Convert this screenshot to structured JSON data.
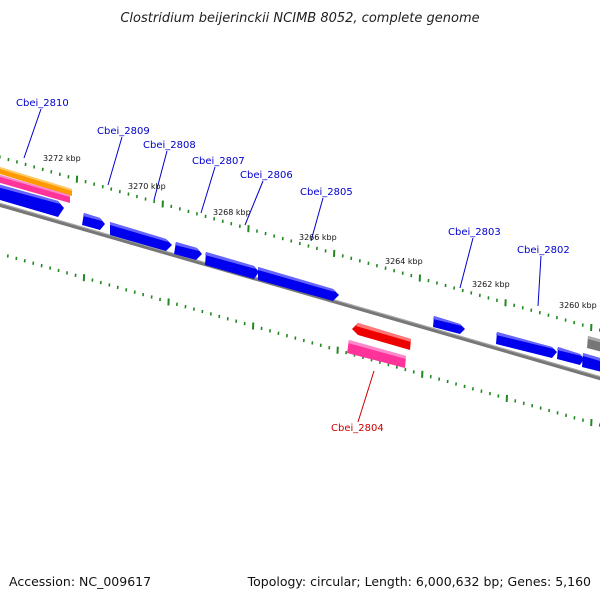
{
  "title": "Clostridium beijerinckii NCIMB 8052, complete genome",
  "footer": {
    "accession": "Accession: NC_009617",
    "summary": "Topology: circular; Length: 6,000,632 bp; Genes: 5,160"
  },
  "colors": {
    "forward_gene": "#0000ee",
    "reverse_gene": "#ee0000",
    "rna_pink": "#ff3399",
    "rna_orange": "#ff9900",
    "backbone": "#808080",
    "tick": "#228822",
    "label_forward": "#0000cc",
    "label_reverse": "#cc0000"
  },
  "scale_labels": [
    "3272 kbp",
    "3270 kbp",
    "3268 kbp",
    "3266 kbp",
    "3264 kbp",
    "3262 kbp",
    "3260 kbp"
  ],
  "gene_labels": [
    {
      "text": "Cbei_2810",
      "strand": "forward"
    },
    {
      "text": "Cbei_2809",
      "strand": "forward"
    },
    {
      "text": "Cbei_2808",
      "strand": "forward"
    },
    {
      "text": "Cbei_2807",
      "strand": "forward"
    },
    {
      "text": "Cbei_2806",
      "strand": "forward"
    },
    {
      "text": "Cbei_2805",
      "strand": "forward"
    },
    {
      "text": "Cbei_2803",
      "strand": "forward"
    },
    {
      "text": "Cbei_2802",
      "strand": "forward"
    },
    {
      "text": "Cbei_2804",
      "strand": "reverse"
    }
  ]
}
